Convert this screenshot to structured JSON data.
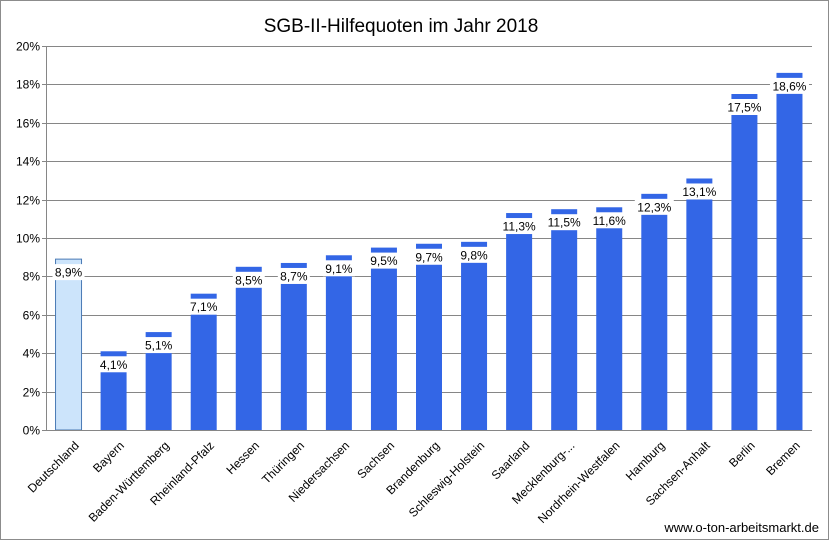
{
  "chart_data": {
    "type": "bar",
    "title": "SGB-II-Hilfequoten im Jahr 2018",
    "categories": [
      "Deutschland",
      "Bayern",
      "Baden-Württemberg",
      "Rheinland-Pfalz",
      "Hessen",
      "Thüringen",
      "Niedersachsen",
      "Sachsen",
      "Brandenburg",
      "Schleswig-Holstein",
      "Saarland",
      "Mecklenburg-...",
      "Nordrhein-Westfalen",
      "Hamburg",
      "Sachsen-Anhalt",
      "Berlin",
      "Bremen"
    ],
    "values": [
      8.9,
      4.1,
      5.1,
      7.1,
      8.5,
      8.7,
      9.1,
      9.5,
      9.7,
      9.8,
      11.3,
      11.5,
      11.6,
      12.3,
      13.1,
      17.5,
      18.6
    ],
    "data_labels": [
      "8,9%",
      "4,1%",
      "5,1%",
      "7,1%",
      "8,5%",
      "8,7%",
      "9,1%",
      "9,5%",
      "9,7%",
      "9,8%",
      "11,3%",
      "11,5%",
      "11,6%",
      "12,3%",
      "13,1%",
      "17,5%",
      "18,6%"
    ],
    "ylim": [
      0,
      20
    ],
    "yticks": [
      0,
      2,
      4,
      6,
      8,
      10,
      12,
      14,
      16,
      18,
      20
    ],
    "ytick_labels": [
      "0%",
      "2%",
      "4%",
      "6%",
      "8%",
      "10%",
      "12%",
      "14%",
      "16%",
      "18%",
      "20%"
    ],
    "grid": true,
    "xlabel": "",
    "ylabel": "",
    "colors": {
      "bar": "#3366e6",
      "highlight_bar": "#cce4fb",
      "highlight_border": "#4a7ab5",
      "grid": "#868686",
      "label_bg": "#ffffff"
    },
    "highlight_index": 0,
    "source": "www.o-ton-arbeitsmarkt.de"
  }
}
